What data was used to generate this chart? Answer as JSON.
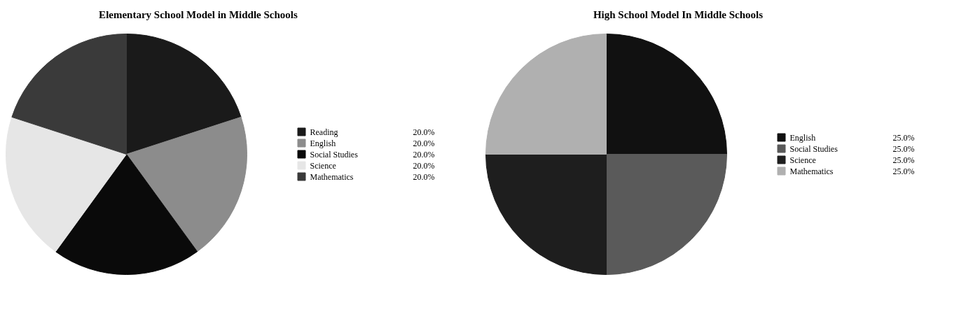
{
  "chart_data": [
    {
      "type": "pie",
      "title": "Elementary School Model in Middle Schools",
      "categories": [
        "Reading",
        "English",
        "Social Studies",
        "Science",
        "Mathematics"
      ],
      "values": [
        20,
        20,
        20,
        20,
        20
      ],
      "value_labels": [
        "20.0%",
        "20.0%",
        "20.0%",
        "20.0%",
        "20.0%"
      ],
      "colors": [
        "#1a1a1a",
        "#8c8c8c",
        "#0a0a0a",
        "#e6e6e6",
        "#3a3a3a"
      ],
      "legend": "right"
    },
    {
      "type": "pie",
      "title": "High School Model In Middle Schools",
      "categories": [
        "English",
        "Social Studies",
        "Science",
        "Mathematics"
      ],
      "values": [
        25,
        25,
        25,
        25
      ],
      "value_labels": [
        "25.0%",
        "25.0%",
        "25.0%",
        "25.0%"
      ],
      "colors": [
        "#111111",
        "#5a5a5a",
        "#1e1e1e",
        "#b0b0b0"
      ],
      "legend": "right"
    }
  ]
}
